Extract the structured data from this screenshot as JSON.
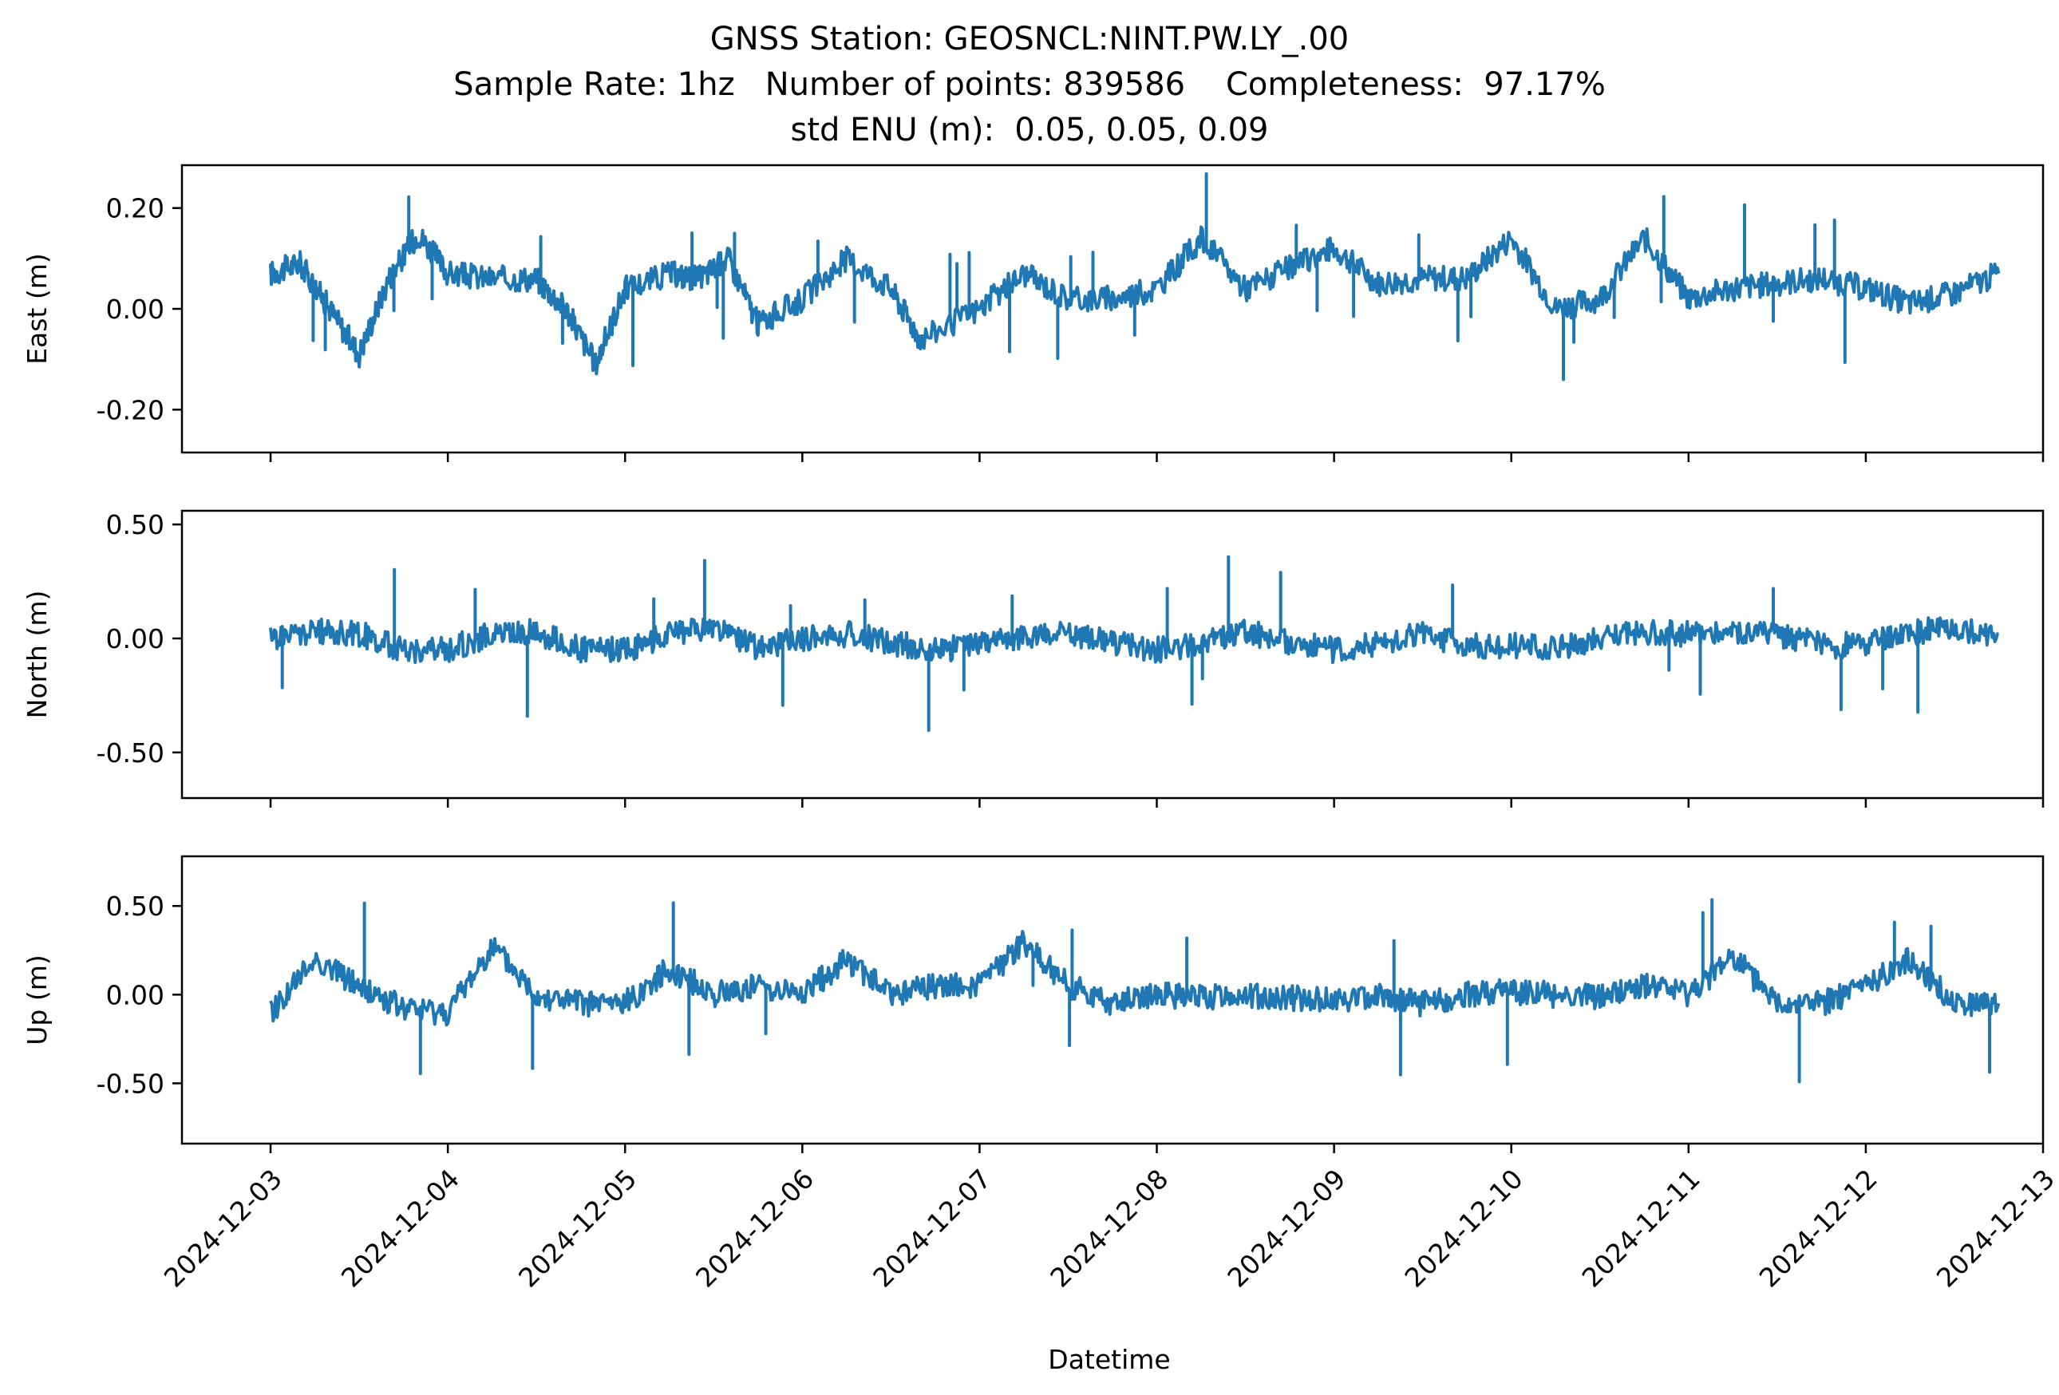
{
  "figure": {
    "title_line1": "GNSS Station: GEOSNCL:NINT.PW.LY_.00",
    "title_line2": "Sample Rate: 1hz   Number of points: 839586    Completeness:  97.17%",
    "title_line3": "std ENU (m):  0.05, 0.05, 0.09",
    "xlabel": "Datetime",
    "line_color": "#1f77b4"
  },
  "chart_data": [
    {
      "type": "line",
      "ylabel": "East (m)",
      "ylim": [
        -0.285,
        0.285
      ],
      "yticks": [
        -0.2,
        0.0,
        0.2
      ],
      "ytick_labels": [
        "-0.20",
        "0.00",
        "0.20"
      ],
      "xlim": [
        "2024-12-02T12:00",
        "2024-12-13T00:00"
      ],
      "series": [
        {
          "x": [
            "2024-12-03T00:00",
            "2024-12-03T04:00",
            "2024-12-03T08:00",
            "2024-12-03T12:00",
            "2024-12-03T16:00",
            "2024-12-03T20:00",
            "2024-12-04T00:00",
            "2024-12-04T06:00",
            "2024-12-04T12:00",
            "2024-12-04T16:00",
            "2024-12-04T20:00",
            "2024-12-05T00:00",
            "2024-12-05T06:00",
            "2024-12-05T10:00",
            "2024-12-05T14:00",
            "2024-12-05T18:00",
            "2024-12-06T00:00",
            "2024-12-06T06:00",
            "2024-12-06T12:00",
            "2024-12-06T16:00",
            "2024-12-07T00:00",
            "2024-12-07T06:00",
            "2024-12-07T12:00",
            "2024-12-07T18:00",
            "2024-12-08T00:00",
            "2024-12-08T06:00",
            "2024-12-08T12:00",
            "2024-12-08T18:00",
            "2024-12-09T00:00",
            "2024-12-09T06:00",
            "2024-12-09T12:00",
            "2024-12-09T18:00",
            "2024-12-10T00:00",
            "2024-12-10T06:00",
            "2024-12-10T12:00",
            "2024-12-10T18:00",
            "2024-12-11T00:00",
            "2024-12-11T06:00",
            "2024-12-11T12:00",
            "2024-12-11T18:00",
            "2024-12-12T00:00",
            "2024-12-12T06:00",
            "2024-12-12T12:00",
            "2024-12-12T18:00"
          ],
          "y": [
            0.07,
            0.09,
            0.0,
            -0.09,
            0.06,
            0.15,
            0.07,
            0.06,
            0.06,
            0.0,
            -0.11,
            0.04,
            0.07,
            0.06,
            0.1,
            -0.03,
            0.02,
            0.1,
            0.04,
            -0.06,
            0.0,
            0.07,
            0.02,
            0.02,
            0.04,
            0.14,
            0.04,
            0.08,
            0.12,
            0.05,
            0.06,
            0.06,
            0.14,
            0.0,
            0.02,
            0.14,
            0.02,
            0.04,
            0.05,
            0.06,
            0.04,
            0.01,
            0.03,
            0.07
          ]
        }
      ]
    },
    {
      "type": "line",
      "ylabel": "North (m)",
      "ylim": [
        -0.7,
        0.56
      ],
      "yticks": [
        -0.5,
        0.0,
        0.5
      ],
      "ytick_labels": [
        "-0.50",
        "0.00",
        "0.50"
      ],
      "xlim": [
        "2024-12-02T12:00",
        "2024-12-13T00:00"
      ],
      "series": [
        {
          "x": [
            "2024-12-03T00:00",
            "2024-12-03T06:00",
            "2024-12-03T12:00",
            "2024-12-03T18:00",
            "2024-12-04T00:00",
            "2024-12-04T06:00",
            "2024-12-04T12:00",
            "2024-12-04T18:00",
            "2024-12-05T00:00",
            "2024-12-05T06:00",
            "2024-12-05T12:00",
            "2024-12-05T18:00",
            "2024-12-06T00:00",
            "2024-12-06T06:00",
            "2024-12-06T12:00",
            "2024-12-06T18:00",
            "2024-12-07T00:00",
            "2024-12-07T06:00",
            "2024-12-07T12:00",
            "2024-12-07T18:00",
            "2024-12-08T00:00",
            "2024-12-08T06:00",
            "2024-12-08T12:00",
            "2024-12-08T18:00",
            "2024-12-09T00:00",
            "2024-12-09T06:00",
            "2024-12-09T12:00",
            "2024-12-09T18:00",
            "2024-12-10T00:00",
            "2024-12-10T06:00",
            "2024-12-10T12:00",
            "2024-12-10T18:00",
            "2024-12-11T00:00",
            "2024-12-11T06:00",
            "2024-12-11T12:00",
            "2024-12-11T18:00",
            "2024-12-12T00:00",
            "2024-12-12T06:00",
            "2024-12-12T12:00",
            "2024-12-12T18:00"
          ],
          "y": [
            0.0,
            0.03,
            0.02,
            -0.05,
            -0.05,
            0.02,
            0.03,
            -0.05,
            -0.05,
            0.02,
            0.05,
            -0.04,
            0.0,
            0.02,
            -0.02,
            -0.05,
            -0.03,
            0.01,
            0.03,
            -0.02,
            -0.05,
            -0.02,
            0.03,
            -0.02,
            -0.05,
            -0.02,
            0.02,
            -0.03,
            -0.03,
            -0.05,
            0.0,
            0.03,
            0.02,
            0.03,
            0.02,
            -0.03,
            -0.03,
            0.03,
            0.04,
            0.02
          ]
        }
      ]
    },
    {
      "type": "line",
      "ylabel": "Up (m)",
      "ylim": [
        -0.84,
        0.78
      ],
      "yticks": [
        -0.5,
        0.0,
        0.5
      ],
      "ytick_labels": [
        "-0.50",
        "0.00",
        "0.50"
      ],
      "xlim": [
        "2024-12-02T12:00",
        "2024-12-13T00:00"
      ],
      "xtick_labels": [
        "2024-12-03",
        "2024-12-04",
        "2024-12-05",
        "2024-12-06",
        "2024-12-07",
        "2024-12-08",
        "2024-12-09",
        "2024-12-10",
        "2024-12-11",
        "2024-12-12",
        "2024-12-13"
      ],
      "series": [
        {
          "x": [
            "2024-12-03T00:00",
            "2024-12-03T06:00",
            "2024-12-03T12:00",
            "2024-12-03T18:00",
            "2024-12-04T00:00",
            "2024-12-04T06:00",
            "2024-12-04T12:00",
            "2024-12-04T18:00",
            "2024-12-05T00:00",
            "2024-12-05T06:00",
            "2024-12-05T12:00",
            "2024-12-05T18:00",
            "2024-12-06T00:00",
            "2024-12-06T06:00",
            "2024-12-06T12:00",
            "2024-12-06T18:00",
            "2024-12-07T00:00",
            "2024-12-07T06:00",
            "2024-12-07T12:00",
            "2024-12-07T18:00",
            "2024-12-08T00:00",
            "2024-12-08T06:00",
            "2024-12-08T12:00",
            "2024-12-08T18:00",
            "2024-12-09T00:00",
            "2024-12-09T06:00",
            "2024-12-09T12:00",
            "2024-12-09T18:00",
            "2024-12-10T00:00",
            "2024-12-10T06:00",
            "2024-12-10T12:00",
            "2024-12-10T18:00",
            "2024-12-11T00:00",
            "2024-12-11T06:00",
            "2024-12-11T12:00",
            "2024-12-11T18:00",
            "2024-12-12T00:00",
            "2024-12-12T06:00",
            "2024-12-12T12:00",
            "2024-12-12T18:00"
          ],
          "y": [
            -0.1,
            0.2,
            0.05,
            -0.08,
            -0.1,
            0.27,
            0.0,
            -0.05,
            -0.05,
            0.15,
            0.0,
            0.05,
            0.0,
            0.2,
            0.0,
            0.05,
            0.05,
            0.3,
            0.05,
            -0.05,
            0.0,
            -0.02,
            0.0,
            -0.02,
            -0.03,
            0.0,
            -0.05,
            0.0,
            0.02,
            0.0,
            -0.02,
            0.05,
            0.0,
            0.22,
            -0.05,
            -0.05,
            0.05,
            0.2,
            -0.05,
            -0.05
          ]
        }
      ]
    }
  ]
}
